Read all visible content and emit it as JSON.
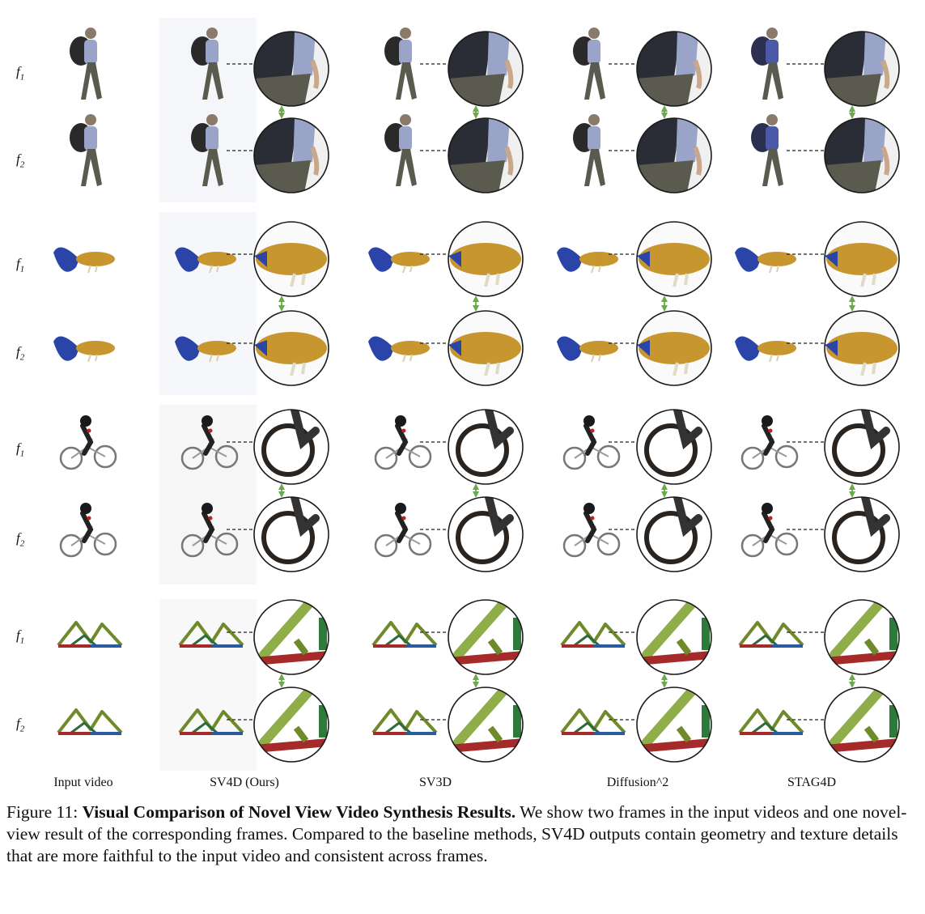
{
  "row_labels": [
    {
      "base": "f",
      "sub": "1"
    },
    {
      "base": "f",
      "sub": "2"
    },
    {
      "base": "f",
      "sub": "1"
    },
    {
      "base": "f",
      "sub": "2"
    },
    {
      "base": "f",
      "sub": "1"
    },
    {
      "base": "f",
      "sub": "2"
    },
    {
      "base": "f",
      "sub": "1"
    },
    {
      "base": "f",
      "sub": "2"
    }
  ],
  "columns": [
    "Input video",
    "SV4D (Ours)",
    "SV3D",
    "Diffusion^2",
    "STAG4D"
  ],
  "caption": {
    "label": "Figure 11:",
    "title": "Visual Comparison of Novel View Video Synthesis Results.",
    "text": "We show two frames in the input videos and one novel-view result of the corresponding frames. Compared to the baseline methods, SV4D outputs contain geometry and texture details that are more faithful to the input video and consistent across frames."
  },
  "subjects": [
    "hiker",
    "fish",
    "cyclist",
    "truss"
  ],
  "colors": {
    "arrow": "#6aaa4a",
    "fish_blue": "#2a44a8",
    "fish_gold": "#c8962e",
    "truss_green": "#6f8a2a",
    "truss_red": "#a52a2a",
    "truss_blue": "#2a5aa0",
    "hiker_shirt": "#9aa4c8",
    "hiker_pants": "#5a5a4e"
  }
}
